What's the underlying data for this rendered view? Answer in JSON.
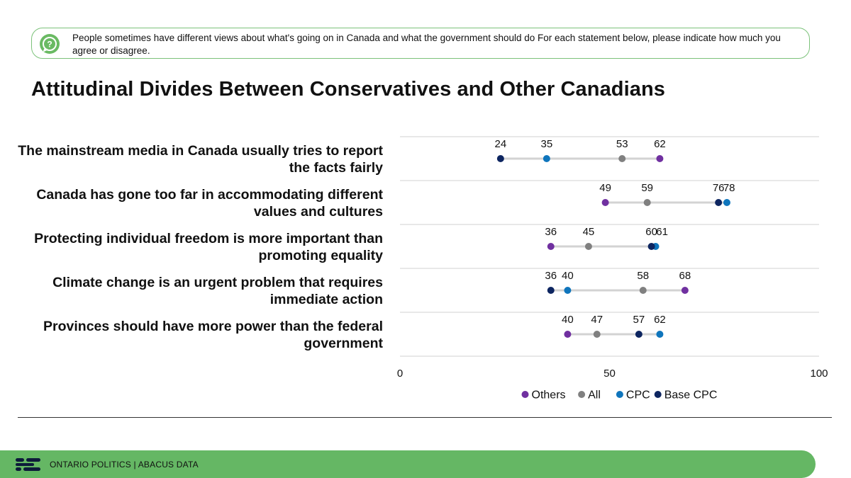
{
  "question": {
    "icon": "question-bubble-icon",
    "text": "People sometimes have different views about what's going on in Canada and what the government should do  For each statement below, please indicate how much you agree or disagree."
  },
  "chart_data": {
    "type": "dot-plot",
    "title": "Attitudinal Divides Between Conservatives and Other Canadians",
    "xlim": [
      0,
      100
    ],
    "xticks": [
      0,
      50,
      100
    ],
    "grid": true,
    "legend_position": "bottom",
    "series": [
      {
        "name": "Others",
        "color": "#7030a0"
      },
      {
        "name": "All",
        "color": "#808080"
      },
      {
        "name": "CPC",
        "color": "#0f75bc"
      },
      {
        "name": "Base CPC",
        "color": "#0d2560"
      }
    ],
    "categories": [
      {
        "label": "The mainstream media in Canada usually tries to report the facts fairly",
        "values": {
          "Others": 62,
          "All": 53,
          "CPC": 35,
          "Base CPC": 24
        },
        "value_labels": [
          "24",
          "35",
          "53",
          "62"
        ]
      },
      {
        "label": "Canada has gone too far in accommodating different values and cultures",
        "values": {
          "Others": 49,
          "All": 59,
          "CPC": 78,
          "Base CPC": 76
        },
        "value_labels": [
          "49",
          "59",
          "76",
          "78"
        ]
      },
      {
        "label": "Protecting individual freedom is more important than promoting equality",
        "values": {
          "Others": 36,
          "All": 45,
          "CPC": 61,
          "Base CPC": 60
        },
        "value_labels": [
          "36",
          "45",
          "60",
          "61"
        ]
      },
      {
        "label": "Climate change is an urgent problem that requires immediate action",
        "values": {
          "Others": 68,
          "All": 58,
          "CPC": 40,
          "Base CPC": 36
        },
        "value_labels": [
          "36",
          "40",
          "58",
          "68"
        ]
      },
      {
        "label": "Provinces should have more power than the federal government",
        "values": {
          "Others": 40,
          "All": 47,
          "CPC": 62,
          "Base CPC": 57
        },
        "value_labels": [
          "40",
          "47",
          "57",
          "62"
        ]
      }
    ]
  },
  "footer": {
    "logo_icon": "abacus-logo-icon",
    "text": "ONTARIO POLITICS  |  ABACUS DATA",
    "color": "#65b764"
  }
}
